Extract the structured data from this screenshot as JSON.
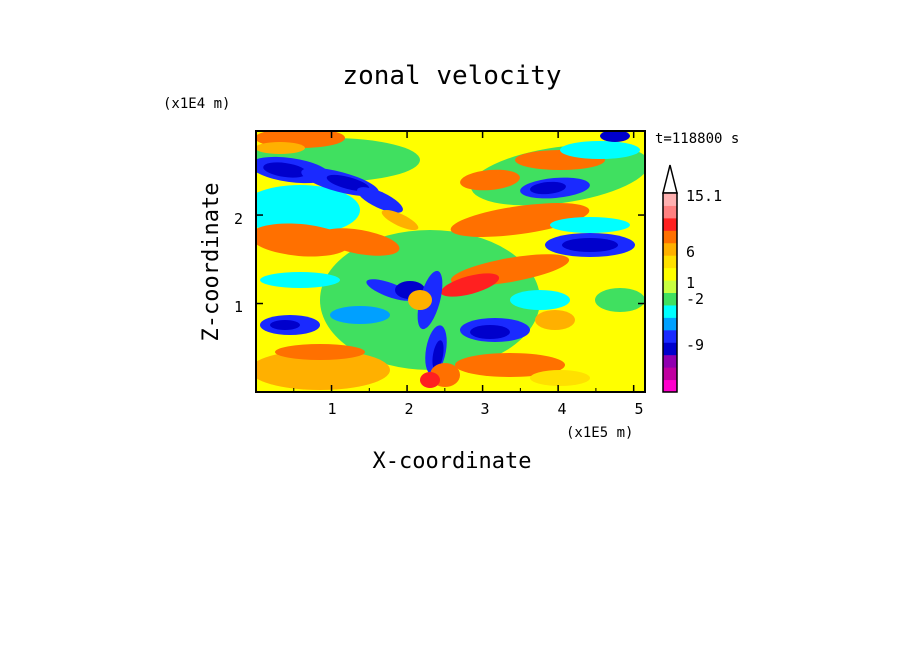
{
  "chart_data": {
    "type": "heatmap",
    "title": "zonal velocity",
    "xlabel": "X-coordinate",
    "ylabel": "Z-coordinate",
    "x_scale_label": "(x1E5 m)",
    "y_scale_label": "(x1E4 m)",
    "time_label": "t=118800 s",
    "xlim": [
      0,
      5.15
    ],
    "ylim": [
      0,
      2.95
    ],
    "x_ticks": [
      "1",
      "2",
      "3",
      "4",
      "5"
    ],
    "y_ticks": [
      "1",
      "2"
    ],
    "colorbar": {
      "levels": [
        "15.1",
        "6",
        "1",
        "-2",
        "-9"
      ],
      "colors": [
        "#ff00cc",
        "#c000a0",
        "#9000b0",
        "#0000cc",
        "#1a2aff",
        "#00a0ff",
        "#00ffff",
        "#40e060",
        "#c8ff40",
        "#ffff00",
        "#ffe000",
        "#ffb000",
        "#ff7000",
        "#ff2020",
        "#ff8080",
        "#ffb0b0"
      ],
      "extend": "max"
    },
    "background_color": "#ffff00"
  }
}
